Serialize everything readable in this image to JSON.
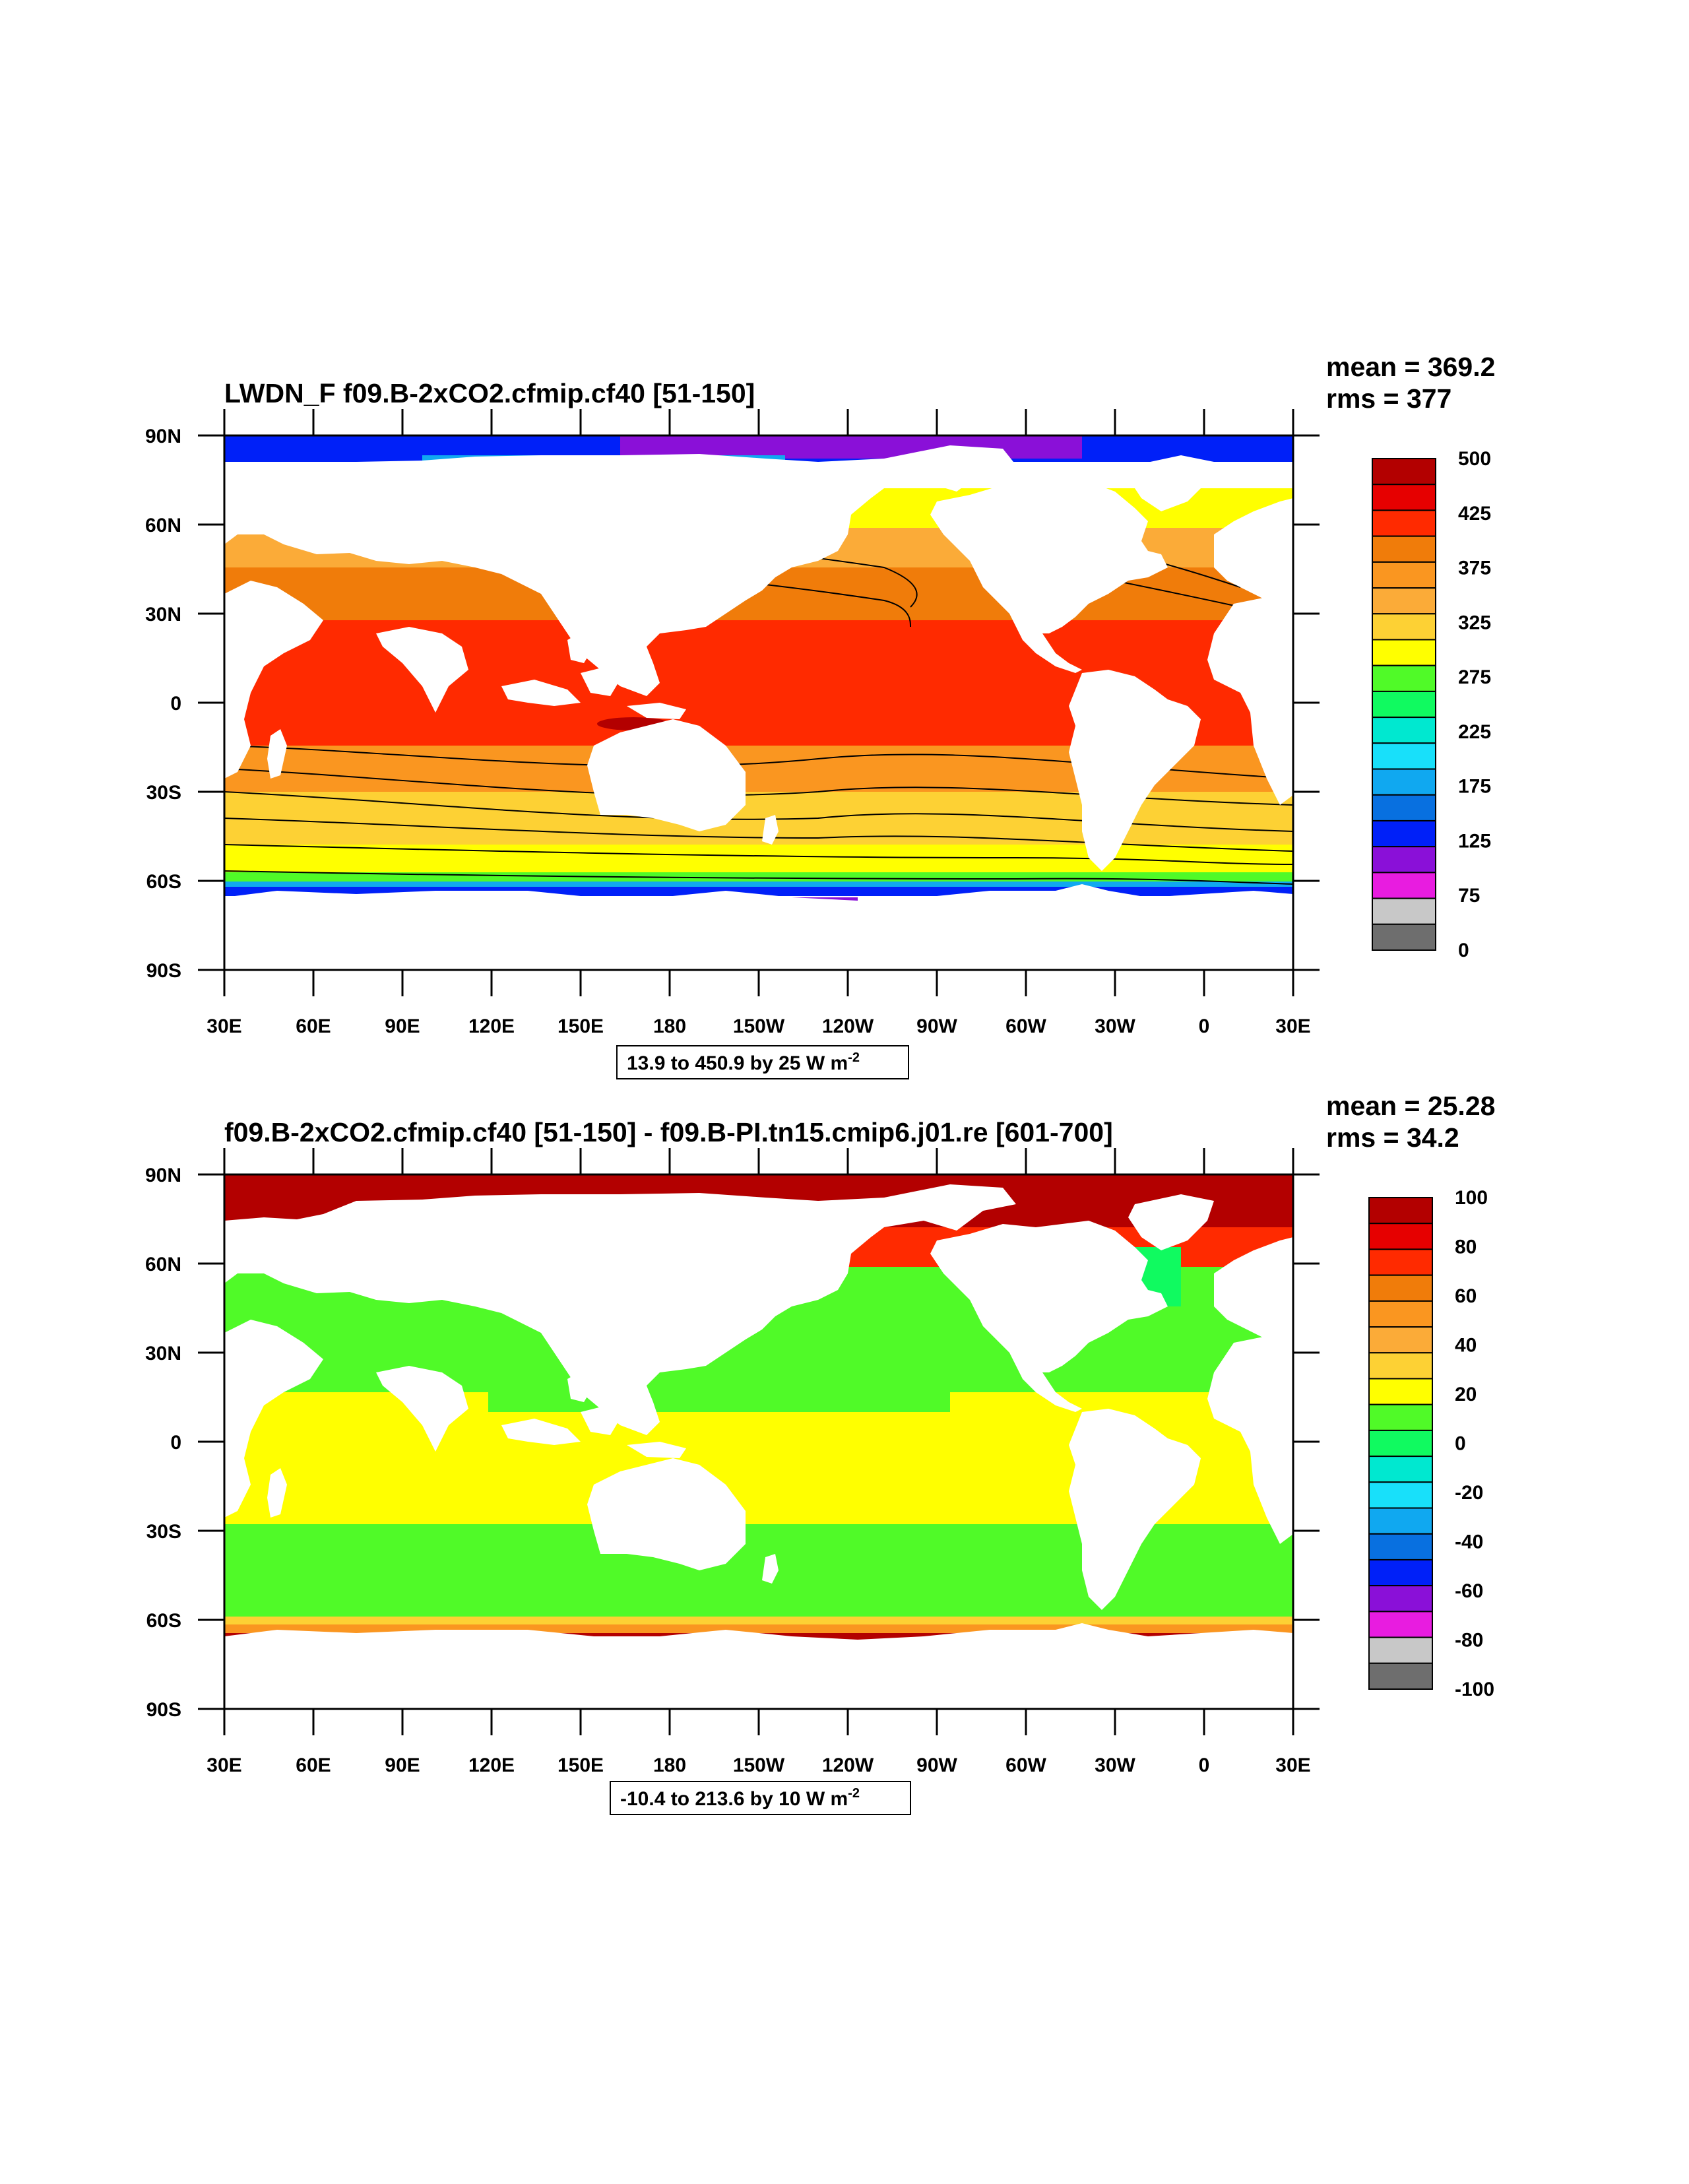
{
  "lat_labels": [
    "90N",
    "60N",
    "30N",
    "0",
    "30S",
    "60S",
    "90S"
  ],
  "lon_labels": [
    "30E",
    "60E",
    "90E",
    "120E",
    "150E",
    "180",
    "150W",
    "120W",
    "90W",
    "60W",
    "30W",
    "0",
    "30E"
  ],
  "panels": [
    {
      "title": "LWDN_F f09.B-2xCO2.cfmip.cf40 [51-150]",
      "mean": "mean = 369.2",
      "rms": "rms = 377",
      "info_main": "13.9 to 450.9 by 25  W m",
      "info_sup": "-2",
      "colorbar": {
        "labels": [
          "500",
          "425",
          "375",
          "325",
          "275",
          "225",
          "175",
          "125",
          "75",
          "0"
        ],
        "colors": [
          "#b30000",
          "#e60000",
          "#ff2a00",
          "#f07c0a",
          "#fa9620",
          "#fbab38",
          "#fdd134",
          "#ffff00",
          "#50fa28",
          "#10fa60",
          "#00e8d0",
          "#18e0fa",
          "#10a8f0",
          "#0870e0",
          "#0020f8",
          "#8a10d8",
          "#e81ce0",
          "#c8c8c8",
          "#6e6e6e"
        ]
      }
    },
    {
      "title": "f09.B-2xCO2.cfmip.cf40 [51-150] - f09.B-PI.tn15.cmip6.j01.re [601-700]",
      "mean": "mean = 25.28",
      "rms": "rms = 34.2",
      "info_main": "-10.4 to 213.6 by 10  W m",
      "info_sup": "-2",
      "colorbar": {
        "labels": [
          "100",
          "80",
          "60",
          "40",
          "20",
          "0",
          "-20",
          "-40",
          "-60",
          "-80",
          "-100"
        ],
        "colors": [
          "#b30000",
          "#e60000",
          "#ff2a00",
          "#f07c0a",
          "#fa9620",
          "#fbab38",
          "#fdd134",
          "#ffff00",
          "#50fa28",
          "#10fa60",
          "#00e8d0",
          "#18e0fa",
          "#10a8f0",
          "#0870e0",
          "#0020f8",
          "#8a10d8",
          "#e81ce0",
          "#c8c8c8",
          "#6e6e6e"
        ]
      }
    }
  ]
}
